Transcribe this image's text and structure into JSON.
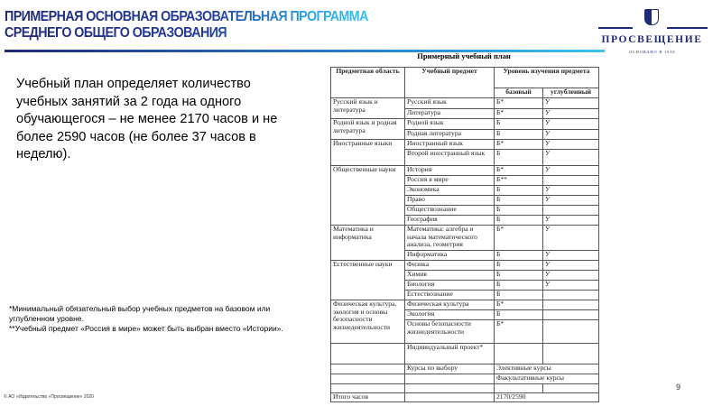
{
  "header": {
    "title_line1": "ПРИМЕРНАЯ ОСНОВНАЯ ОБРАЗОВАТЕЛЬНАЯ ПРОГРАММА",
    "title_line2": "СРЕДНЕГО ОБЩЕГО ОБРАЗОВАНИЯ",
    "logo_name": "ПРОСВЕЩЕНИЕ",
    "logo_subtitle": "ОСНОВАНО В 1930"
  },
  "main_text": "Учебный план определяет количество учебных занятий за 2 года на одного обучающегося – не менее 2170 часов и не более 2590 часов (не более 37 часов в неделю).",
  "notes": [
    "*Минимальный обязательный выбор учебных предметов на базовом или углубленном уровне.",
    "**Учебный предмет «Россия в мире» может быть выбран вместо «Истории»."
  ],
  "copyright": "© АО «Издательство «Просвещение» 2020",
  "page_number": "9",
  "table": {
    "title": "Примерный учебный план",
    "headers": {
      "area": "Предметная область",
      "subject": "Учебный предмет",
      "level": "Уровень изучения предмета",
      "basic": "базовый",
      "advanced": "углубленный"
    },
    "rows": [
      {
        "area": "Русский язык и литература",
        "span": 2,
        "subject": "Русский язык",
        "basic": "Б*",
        "advanced": "У"
      },
      {
        "subject": "Литература",
        "basic": "Б*",
        "advanced": "У"
      },
      {
        "area": "Родной язык и родная литература",
        "span": 2,
        "subject": "Родной язык",
        "basic": "Б",
        "advanced": "У"
      },
      {
        "subject": "Родная литература",
        "basic": "Б",
        "advanced": "У"
      },
      {
        "area": "Иностранные языки",
        "span": 2,
        "subject": "Иностранный язык",
        "basic": "Б*",
        "advanced": "У"
      },
      {
        "subject": "Второй иностранный язык",
        "basic": "Б",
        "advanced": "У"
      },
      {
        "area": "Общественные науки",
        "span": 6,
        "subject": "История",
        "basic": "Б*",
        "advanced": "У"
      },
      {
        "subject": "Россия в мире",
        "basic": "Б**",
        "advanced": ""
      },
      {
        "subject": "Экономика",
        "basic": "Б",
        "advanced": "У"
      },
      {
        "subject": "Право",
        "basic": "Б",
        "advanced": "У"
      },
      {
        "subject": "Обществознание",
        "basic": "Б",
        "advanced": ""
      },
      {
        "subject": "География",
        "basic": "Б",
        "advanced": "У"
      },
      {
        "area": "Математика и информатика",
        "span": 2,
        "subject": "Математика: алгебра и начала математического анализа, геометрия",
        "basic": "Б*",
        "advanced": "У"
      },
      {
        "subject": "Информатика",
        "basic": "Б",
        "advanced": "У"
      },
      {
        "area": "Естественные науки",
        "span": 4,
        "subject": "Физика",
        "basic": "Б",
        "advanced": "У"
      },
      {
        "subject": "Химия",
        "basic": "Б",
        "advanced": "У"
      },
      {
        "subject": "Биология",
        "basic": "Б",
        "advanced": "У"
      },
      {
        "subject": "Естествознание",
        "basic": "Б",
        "advanced": ""
      },
      {
        "area": "Физическая культура, экология и основы безопасности жизнедеятельности",
        "span": 3,
        "subject": "Физическая культура",
        "basic": "Б*",
        "advanced": ""
      },
      {
        "subject": "Экология",
        "basic": "Б",
        "advanced": ""
      },
      {
        "subject": "Основы безопасности жизнедеятельности",
        "basic": "Б*",
        "advanced": ""
      },
      {
        "area": "",
        "span": 1,
        "subject": "Индивидуальный проект*",
        "basic": "",
        "advanced": ""
      },
      {
        "area": "",
        "span": 1,
        "subject": "Курсы по выбору",
        "merged": "Элективные курсы"
      },
      {
        "area": "",
        "span": 1,
        "subject": "",
        "merged": "Факультативные курсы"
      },
      {
        "area": "",
        "span": 1,
        "subject": "",
        "basic": "",
        "advanced": ""
      },
      {
        "area": "Итого часов",
        "span": 1,
        "subject": "",
        "merged": "2170/2590"
      }
    ]
  }
}
